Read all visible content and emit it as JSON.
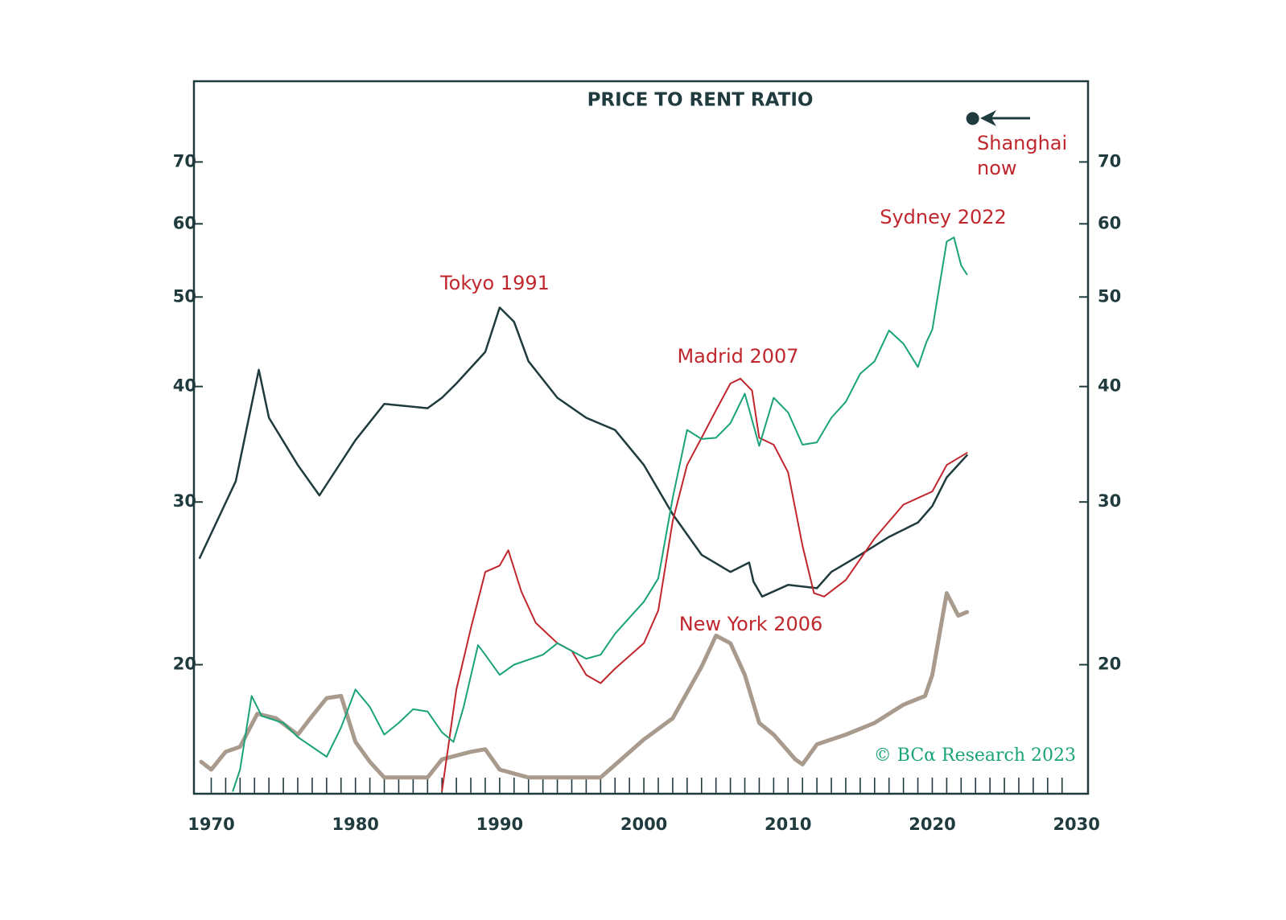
{
  "chart_data": {
    "type": "line",
    "title": "PRICE TO RENT RATIO",
    "source": "© BCα Research 2023",
    "log": true,
    "xlim": [
      1968.8,
      2030.8
    ],
    "ylim": [
      14.5,
      85.6
    ],
    "xticks": [
      1970,
      1980,
      1990,
      2000,
      2010,
      2020,
      2030
    ],
    "xminorticks": [
      1970,
      1971,
      1972,
      1973,
      1974,
      1975,
      1976,
      1977,
      1978,
      1979,
      1980,
      1981,
      1982,
      1983,
      1984,
      1985,
      1986,
      1987,
      1988,
      1989,
      1990,
      1991,
      1992,
      1993,
      1994,
      1995,
      1996,
      1997,
      1998,
      1999,
      2000,
      2001,
      2002,
      2003,
      2004,
      2005,
      2006,
      2007,
      2008,
      2009,
      2010,
      2011,
      2012,
      2013,
      2014,
      2015,
      2016,
      2017,
      2018,
      2019,
      2020,
      2021,
      2022,
      2023,
      2024,
      2025,
      2026,
      2027,
      2028,
      2029
    ],
    "yticks": [
      20,
      30,
      40,
      50,
      60,
      70
    ],
    "annotations": [
      "Tokyo 1991",
      "Madrid 2007",
      "Sydney 2022",
      "New York 2006",
      "Shanghai",
      "now"
    ],
    "points": [
      {
        "x": 2022.8,
        "value": 78,
        "color": "#1f3b3d"
      }
    ],
    "series": [
      {
        "color": "#1f3b3d",
        "width": 2.5,
        "x": [
          1969.2,
          1971.7,
          1973.3,
          1974,
          1976,
          1977.5,
          1980,
          1982,
          1985,
          1986,
          1987,
          1989,
          1990,
          1991,
          1992,
          1994,
          1996,
          1998,
          2000,
          2002,
          2004,
          2006,
          2007.3,
          2007.6,
          2008.2,
          2010,
          2012,
          2013,
          2015,
          2017,
          2019,
          2020,
          2021,
          2022.4
        ],
        "values": [
          26.1,
          31.6,
          41.7,
          37,
          32.9,
          30.5,
          35,
          38.3,
          37.9,
          38.9,
          40.3,
          43.6,
          48.7,
          47,
          42.6,
          38.9,
          37,
          35.9,
          32.9,
          29.1,
          26.3,
          25.2,
          25.8,
          24.6,
          23.7,
          24.4,
          24.2,
          25.2,
          26.3,
          27.5,
          28.5,
          29.7,
          31.9,
          33.7
        ]
      },
      {
        "color": "#1aa37a",
        "width": 2,
        "x": [
          1971.5,
          1972,
          1972.8,
          1973.5,
          1975,
          1976,
          1978,
          1979,
          1980,
          1981,
          1982,
          1983,
          1984,
          1985,
          1986,
          1986.8,
          1987.5,
          1988.5,
          1989,
          1990,
          1991,
          1993,
          1994,
          1996,
          1997,
          1998,
          2000,
          2001,
          2002,
          2003,
          2004,
          2005,
          2006,
          2007,
          2008,
          2009,
          2010,
          2011,
          2012,
          2013,
          2014,
          2015,
          2016,
          2017,
          2018,
          2019,
          2019.6,
          2020,
          2021,
          2021.5,
          2022,
          2022.4
        ],
        "values": [
          14.6,
          15.4,
          18.5,
          17.6,
          17.3,
          16.7,
          15.9,
          17.1,
          18.8,
          18,
          16.8,
          17.3,
          17.9,
          17.8,
          16.9,
          16.5,
          18,
          21,
          20.5,
          19.5,
          20,
          20.5,
          21.1,
          20.3,
          20.5,
          21.6,
          23.4,
          24.8,
          30.3,
          35.9,
          35.1,
          35.2,
          36.5,
          39.3,
          34.5,
          38.9,
          37.5,
          34.6,
          34.8,
          37,
          38.5,
          41.3,
          42.6,
          46,
          44.5,
          42,
          44.7,
          46.1,
          57.4,
          58,
          54.1,
          52.9
        ]
      },
      {
        "color": "#c0272d",
        "width": 2,
        "x": [
          1986,
          1987,
          1988,
          1989,
          1990,
          1990.6,
          1991.5,
          1992.5,
          1994,
          1995,
          1996,
          1997,
          1998,
          2000,
          2001,
          2002,
          2003,
          2004,
          2005,
          2006,
          2006.7,
          2007.5,
          2008,
          2009,
          2010,
          2011,
          2011.8,
          2012.5,
          2014,
          2016,
          2018,
          2020,
          2021,
          2022.4
        ],
        "values": [
          14.6,
          18.8,
          21.9,
          25.2,
          25.6,
          26.6,
          24,
          22.2,
          21.1,
          20.7,
          19.5,
          19.1,
          19.8,
          21.1,
          22.9,
          28.6,
          32.9,
          35.2,
          37.7,
          40.3,
          40.8,
          39.6,
          35.2,
          34.6,
          32.3,
          26.9,
          23.9,
          23.7,
          24.7,
          27.4,
          29.8,
          30.8,
          32.9,
          33.9
        ]
      },
      {
        "color": "#a89a8c",
        "width": 5,
        "x": [
          1969.3,
          1970,
          1971,
          1972,
          1973.2,
          1974.5,
          1976,
          1977,
          1978,
          1979,
          1980,
          1981,
          1982,
          1985,
          1986,
          1988,
          1989,
          1990,
          1992,
          1995,
          1997,
          2000,
          2002,
          2004,
          2005,
          2006,
          2007,
          2008,
          2009,
          2010.5,
          2011,
          2012,
          2014,
          2016,
          2018,
          2019.5,
          2020,
          2021,
          2021.8,
          2022.4
        ],
        "values": [
          15.7,
          15.4,
          16.1,
          16.3,
          17.7,
          17.5,
          16.8,
          17.6,
          18.4,
          18.5,
          16.5,
          15.7,
          15.1,
          15.1,
          15.8,
          16.1,
          16.2,
          15.4,
          15.1,
          15.1,
          15.1,
          16.6,
          17.5,
          19.9,
          21.5,
          21.1,
          19.5,
          17.3,
          16.8,
          15.8,
          15.6,
          16.4,
          16.8,
          17.3,
          18.1,
          18.5,
          19.5,
          23.9,
          22.6,
          22.8
        ]
      }
    ]
  }
}
